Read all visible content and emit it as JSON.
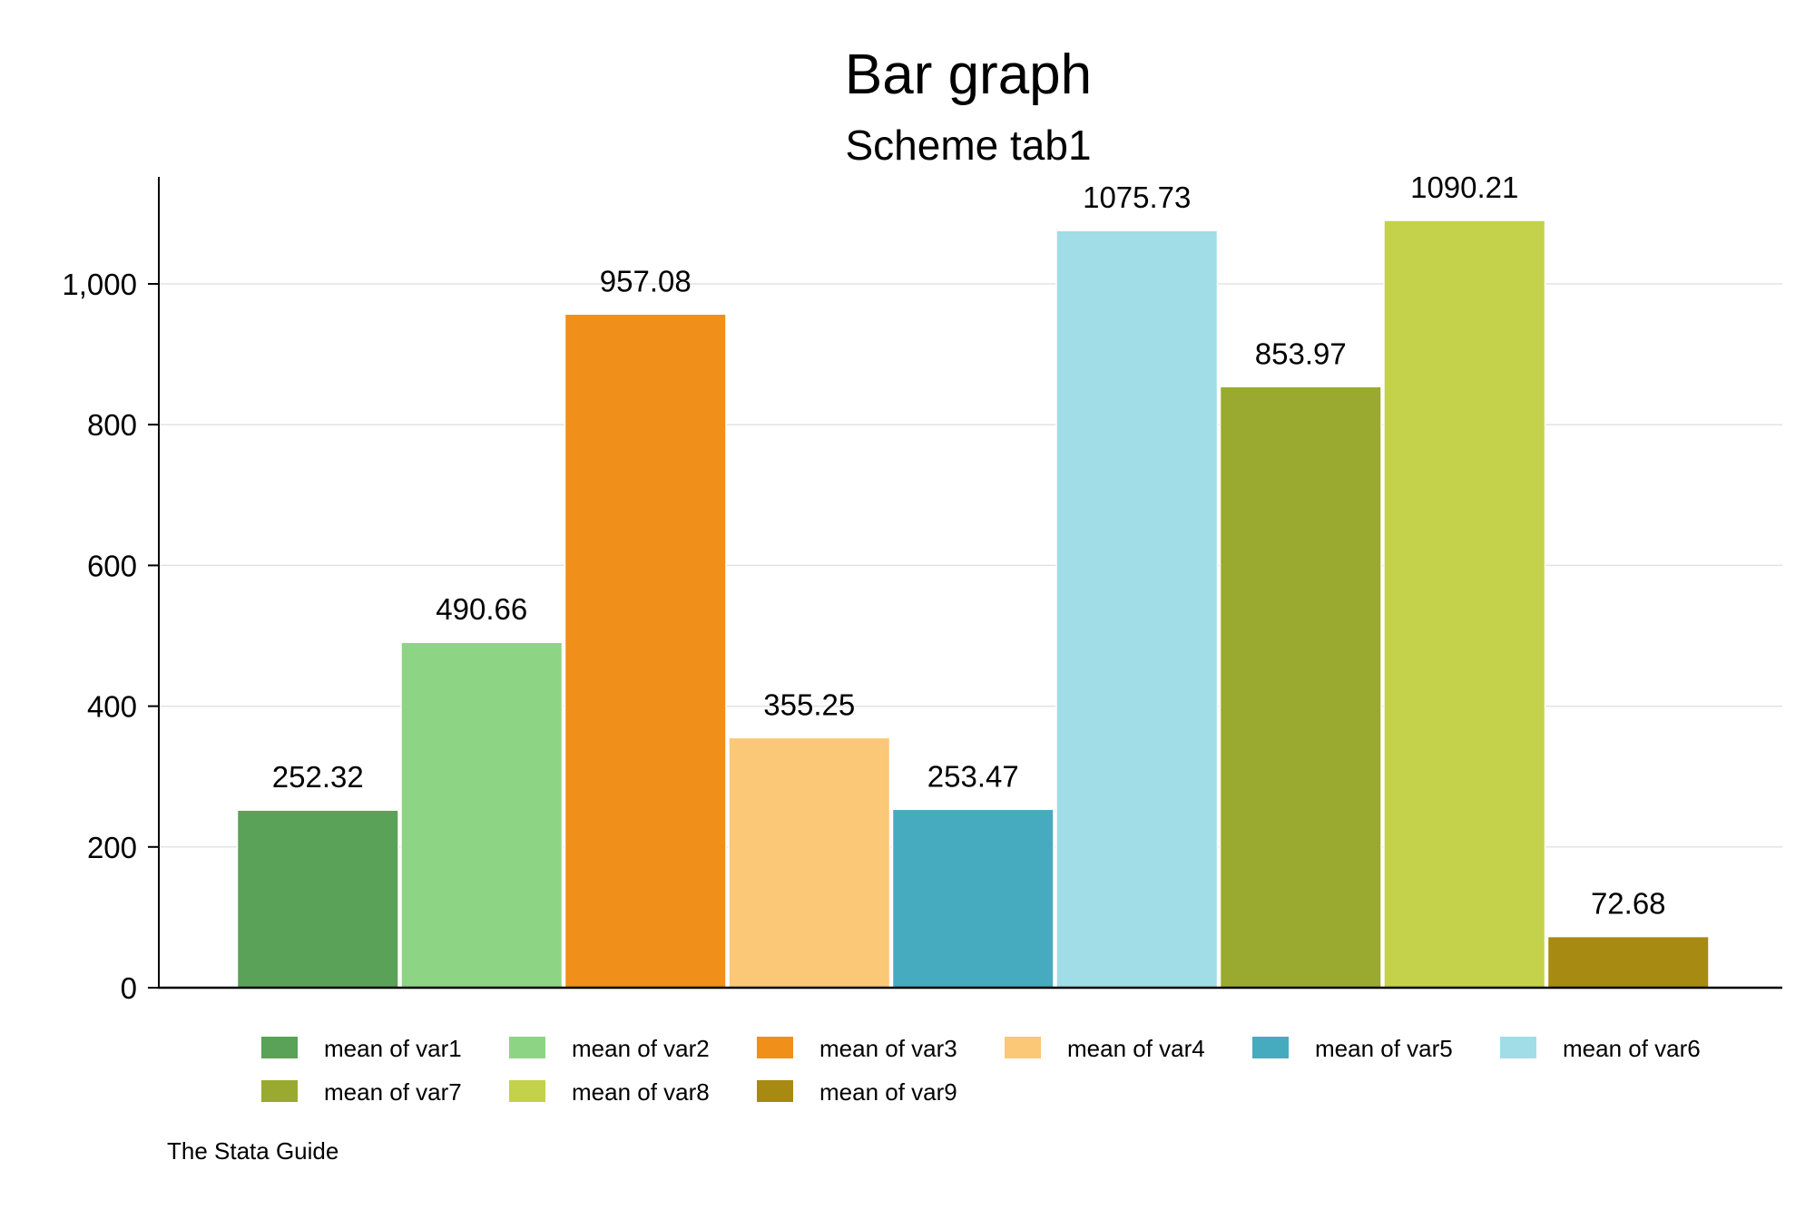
{
  "chart_data": {
    "type": "bar",
    "title": "Bar graph",
    "subtitle": "Scheme tab1",
    "note": "The Stata Guide",
    "xlabel": "",
    "ylabel": "",
    "ylim": [
      0,
      1150
    ],
    "yticks": [
      0,
      200,
      400,
      600,
      800,
      1000
    ],
    "ytick_labels": [
      "0",
      "200",
      "400",
      "600",
      "800",
      "1,000"
    ],
    "grid": true,
    "legend_position": "bottom",
    "series": [
      {
        "name": "mean of var1",
        "value": 252.32,
        "label": "252.32",
        "color": "#59A257"
      },
      {
        "name": "mean of var2",
        "value": 490.66,
        "label": "490.66",
        "color": "#8DD484"
      },
      {
        "name": "mean of var3",
        "value": 957.08,
        "label": "957.08",
        "color": "#F08F1A"
      },
      {
        "name": "mean of var4",
        "value": 355.25,
        "label": "355.25",
        "color": "#FAC877"
      },
      {
        "name": "mean of var5",
        "value": 253.47,
        "label": "253.47",
        "color": "#47ABBF"
      },
      {
        "name": "mean of var6",
        "value": 1075.73,
        "label": "1075.73",
        "color": "#A1DDE6"
      },
      {
        "name": "mean of var7",
        "value": 853.97,
        "label": "853.97",
        "color": "#9AAA30"
      },
      {
        "name": "mean of var8",
        "value": 1090.21,
        "label": "1090.21",
        "color": "#C4D14A"
      },
      {
        "name": "mean of var9",
        "value": 72.68,
        "label": "72.68",
        "color": "#A78A11"
      }
    ]
  }
}
